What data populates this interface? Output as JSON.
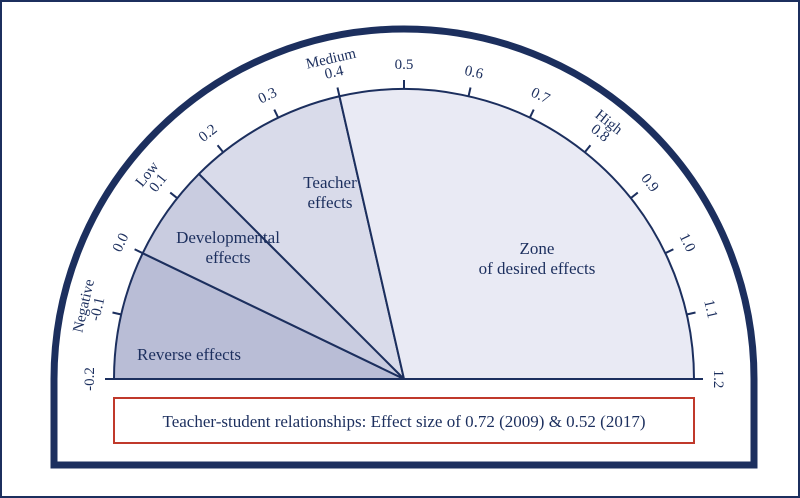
{
  "scale": {
    "min": -0.2,
    "max": 1.2,
    "ticks": [
      "-0.2",
      "-0.1",
      "0.0",
      "0.1",
      "0.2",
      "0.3",
      "0.4",
      "0.5",
      "0.6",
      "0.7",
      "0.8",
      "0.9",
      "1.0",
      "1.1",
      "1.2"
    ]
  },
  "zones": [
    {
      "label": "Negative",
      "at": -0.1
    },
    {
      "label": "Low",
      "at": 0.1
    },
    {
      "label": "Medium",
      "at": 0.4
    },
    {
      "label": "High",
      "at": 0.8
    }
  ],
  "segments": [
    {
      "name": "reverse-effects",
      "from": -0.2,
      "to": 0.0,
      "lines": [
        "Reverse effects"
      ],
      "color": "#b9bdd6"
    },
    {
      "name": "developmental-effects",
      "from": 0.0,
      "to": 0.15,
      "lines": [
        "Developmental",
        "effects"
      ],
      "color": "#c9cce0"
    },
    {
      "name": "teacher-effects",
      "from": 0.15,
      "to": 0.4,
      "lines": [
        "Teacher",
        "effects"
      ],
      "color": "#d9dbea"
    },
    {
      "name": "zone-of-desired-effects",
      "from": 0.4,
      "to": 1.2,
      "lines": [
        "Zone",
        "of desired effects"
      ],
      "color": "#e9eaf4"
    }
  ],
  "caption": "Teacher-student relationships: Effect size of 0.72 (2009) & 0.52 (2017)",
  "colors": {
    "navy": "#1c2f5e",
    "caption_border": "#c0392b",
    "outer_frame": "#1c2f5e"
  }
}
